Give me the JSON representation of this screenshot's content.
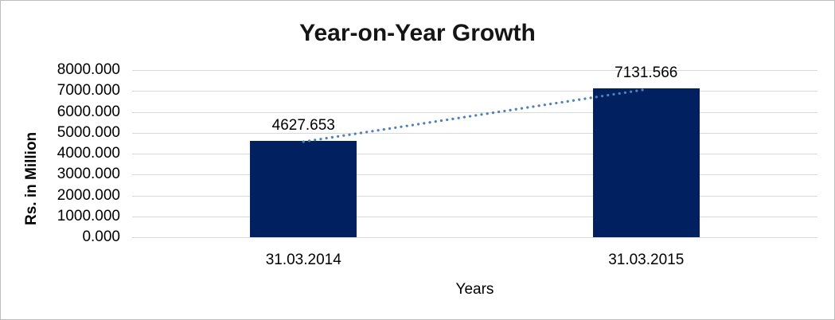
{
  "chart_data": {
    "type": "bar",
    "title": "Year-on-Year Growth",
    "xlabel": "Years",
    "ylabel": "Rs. in Million",
    "categories": [
      "31.03.2014",
      "31.03.2015"
    ],
    "values": [
      4627.653,
      7131.566
    ],
    "data_labels": [
      "4627.653",
      "7131.566"
    ],
    "y_tick_labels": [
      "8000.000",
      "7000.000",
      "6000.000",
      "5000.000",
      "4000.000",
      "3000.000",
      "2000.000",
      "1000.000",
      "0.000"
    ],
    "ylim": [
      0,
      8000
    ],
    "grid": true,
    "legend": "none",
    "bar_color": "#002060",
    "gridline_color": "#D9D9D9",
    "trendline": {
      "type": "linear",
      "style": "dotted",
      "color": "#4E81BD"
    }
  }
}
